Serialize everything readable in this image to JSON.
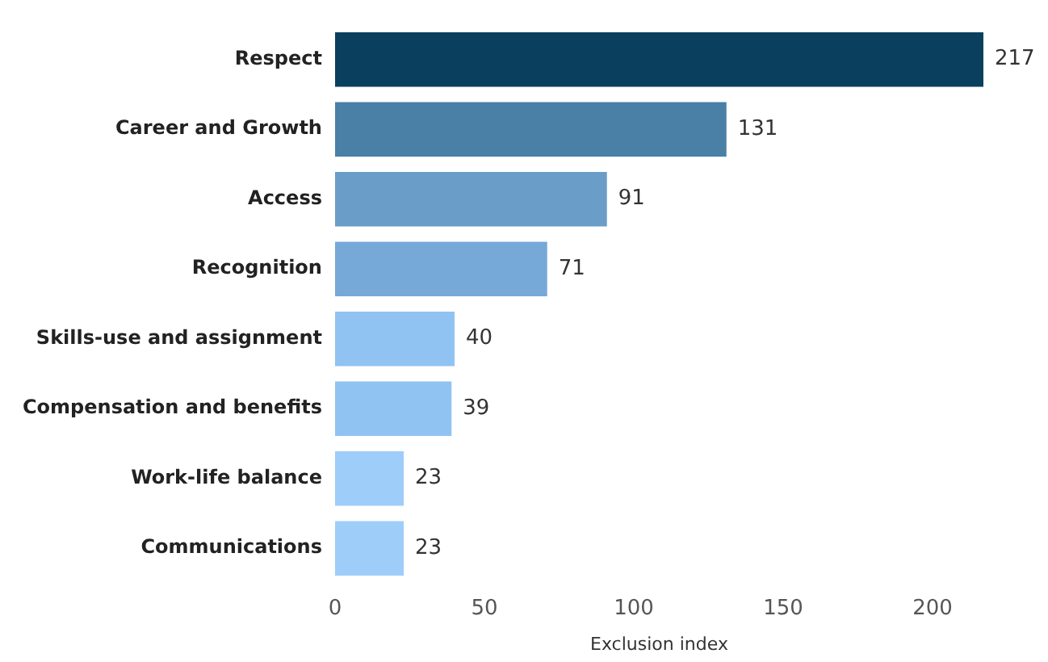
{
  "chart_data": {
    "type": "bar",
    "orientation": "horizontal",
    "xlabel": "Exclusion index",
    "categories": [
      "Respect",
      "Career and Growth",
      "Access",
      "Recognition",
      "Skills-use and assignment",
      "Compensation and benefits",
      "Work-life balance",
      "Communications"
    ],
    "values": [
      217,
      131,
      91,
      71,
      40,
      39,
      23,
      23
    ],
    "colors": [
      "#0a405e",
      "#4a7fa6",
      "#6a9dc7",
      "#76a8d8",
      "#90c3f2",
      "#90c3f2",
      "#9fcdfa",
      "#9fcdfa"
    ],
    "xlim": [
      0,
      217
    ],
    "xticks": [
      0,
      50,
      100,
      150,
      200
    ],
    "grid": false,
    "legend": false,
    "data_labels": true
  }
}
